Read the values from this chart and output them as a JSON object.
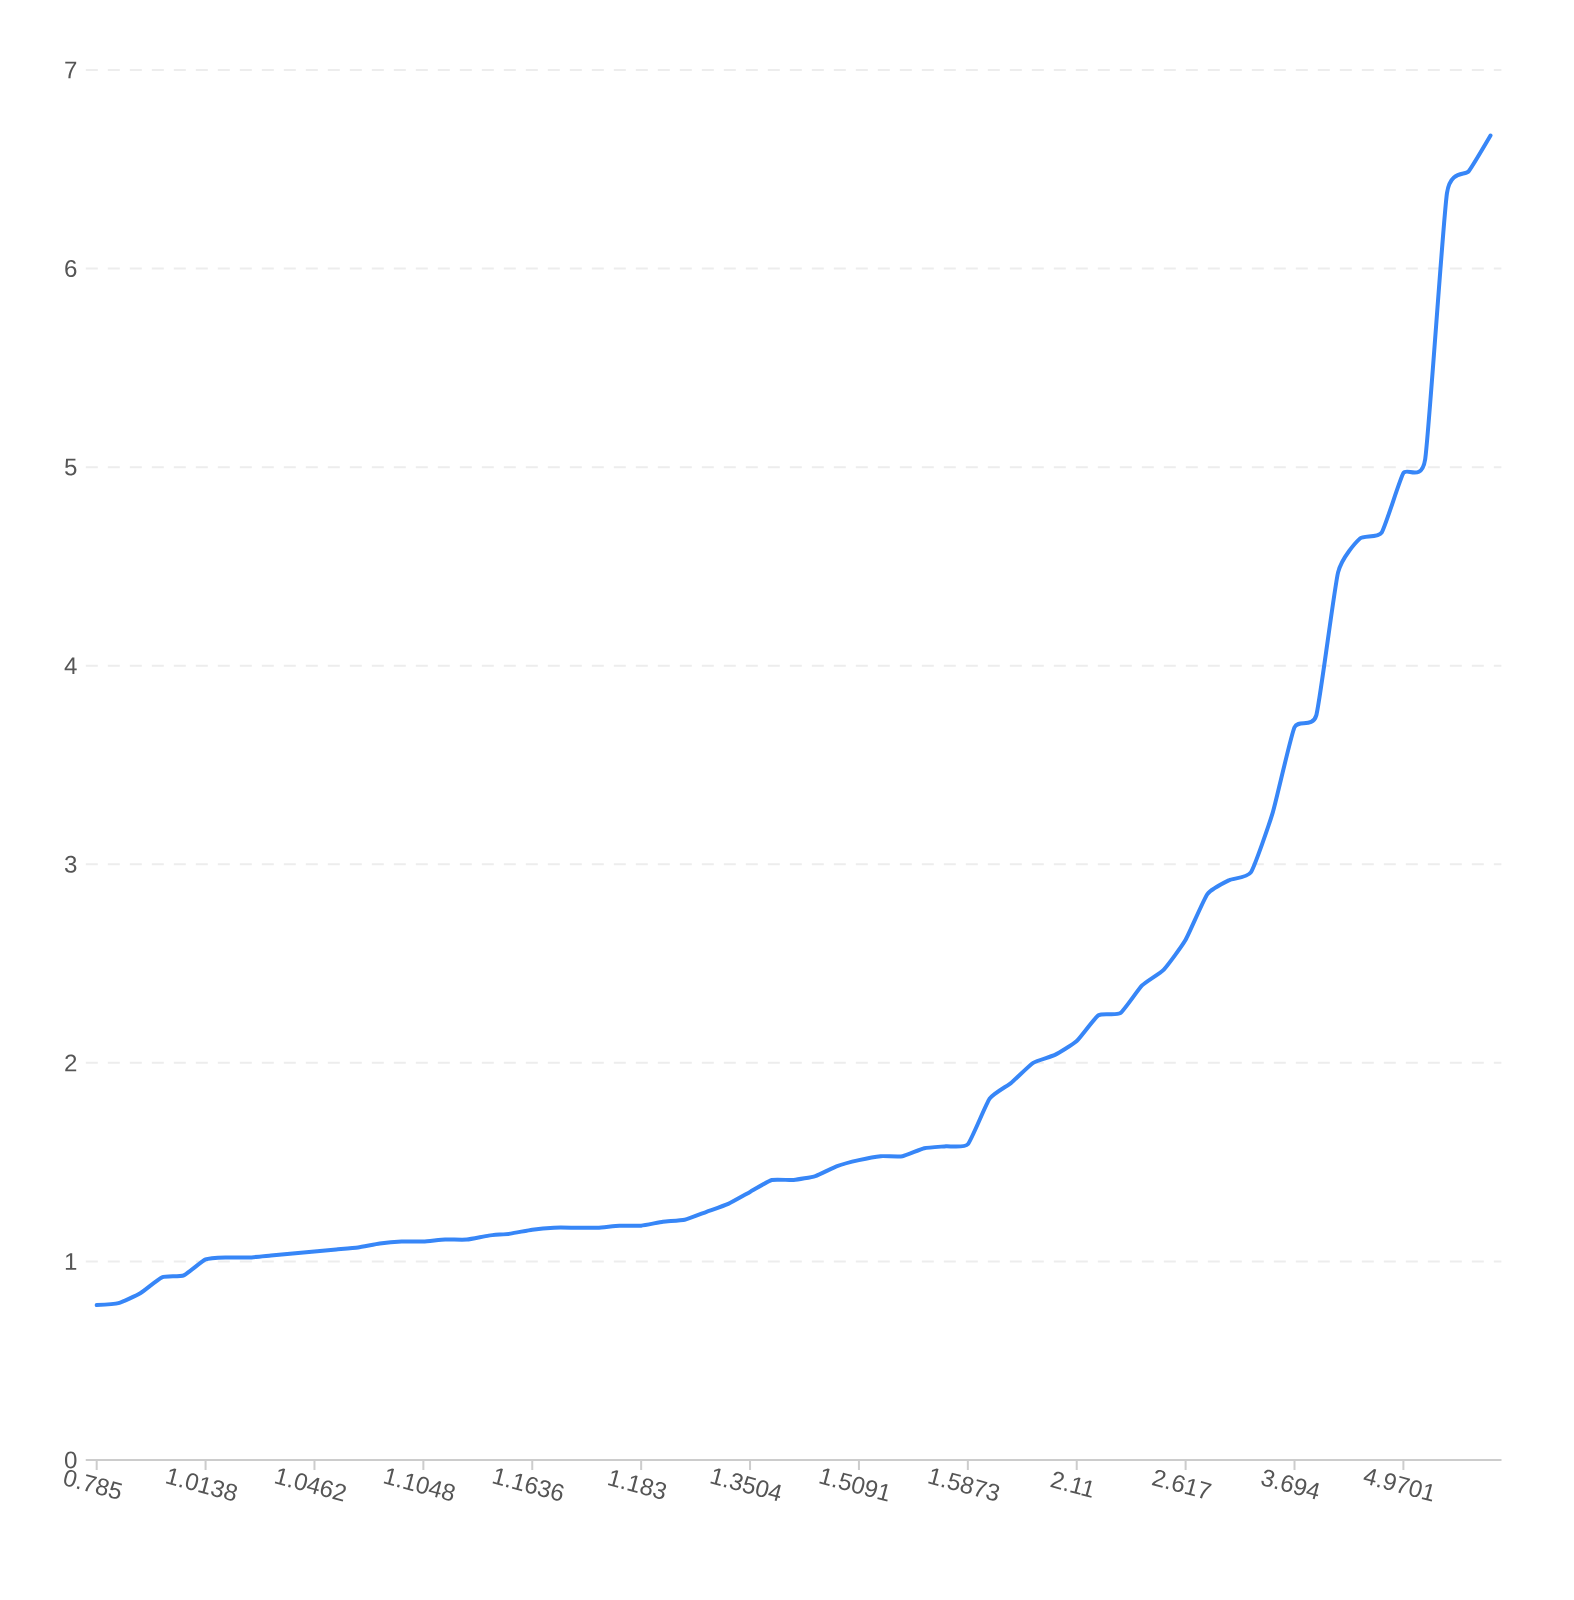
{
  "chart_data": {
    "type": "line",
    "categories": [
      "0.785",
      null,
      null,
      null,
      null,
      "1.0138",
      null,
      null,
      null,
      null,
      "1.0462",
      null,
      null,
      null,
      null,
      "1.1048",
      null,
      null,
      null,
      null,
      "1.1636",
      null,
      null,
      null,
      null,
      "1.183",
      null,
      null,
      null,
      null,
      "1.3504",
      null,
      null,
      null,
      null,
      "1.5091",
      null,
      null,
      null,
      null,
      "1.5873",
      null,
      null,
      null,
      null,
      "2.11",
      null,
      null,
      null,
      null,
      "2.617",
      null,
      null,
      null,
      null,
      "3.694",
      null,
      null,
      null,
      null,
      "4.9701",
      null,
      null,
      null,
      null
    ],
    "series": [
      {
        "color": "#3786f7",
        "values": [
          0.78,
          0.79,
          0.84,
          0.92,
          0.93,
          1.01,
          1.02,
          1.02,
          1.03,
          1.04,
          1.05,
          1.06,
          1.07,
          1.09,
          1.1,
          1.1,
          1.11,
          1.11,
          1.13,
          1.14,
          1.16,
          1.17,
          1.17,
          1.17,
          1.18,
          1.18,
          1.2,
          1.21,
          1.25,
          1.29,
          1.35,
          1.41,
          1.41,
          1.43,
          1.48,
          1.51,
          1.53,
          1.53,
          1.57,
          1.58,
          1.59,
          1.82,
          1.9,
          2.0,
          2.04,
          2.11,
          2.24,
          2.25,
          2.39,
          2.47,
          2.62,
          2.85,
          2.92,
          2.96,
          3.26,
          3.69,
          3.75,
          4.47,
          4.64,
          4.67,
          4.97,
          5.04,
          6.38,
          6.49,
          6.67
        ]
      }
    ],
    "ylim": [
      0,
      7
    ],
    "yticks": [
      0,
      1,
      2,
      3,
      4,
      5,
      6,
      7
    ],
    "grid": "y"
  }
}
